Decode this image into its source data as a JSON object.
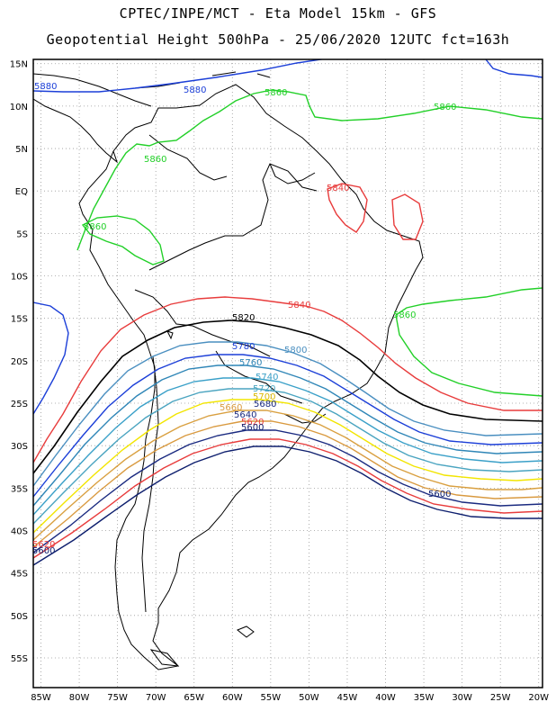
{
  "header": {
    "line1": "CPTEC/INPE/MCT  -  Eta Model 15km  -  GFS",
    "line2": "Geopotential Height 500hPa  -  25/06/2020 12UTC fct=163h"
  },
  "map": {
    "lon_range": [
      -86,
      -19.5
    ],
    "lat_range": [
      -58.5,
      15.5
    ],
    "grid_spacing_deg": 5,
    "grid_style": "dotted",
    "lon_ticks": [
      "85W",
      "80W",
      "75W",
      "70W",
      "65W",
      "60W",
      "55W",
      "50W",
      "45W",
      "40W",
      "35W",
      "30W",
      "25W",
      "20W"
    ],
    "lat_ticks": [
      "15N",
      "10N",
      "5N",
      "EQ",
      "5S",
      "10S",
      "15S",
      "20S",
      "25S",
      "30S",
      "35S",
      "40S",
      "45S",
      "50S",
      "55S"
    ]
  },
  "contour_labels": {
    "c5880": "5880",
    "c5860": "5860",
    "c5840": "5840",
    "c5820": "5820",
    "c5800": "5800",
    "c5780": "5780",
    "c5760": "5760",
    "c5740": "5740",
    "c5720": "5720",
    "c5700": "5700",
    "c5680": "5680",
    "c5660": "5660",
    "c5640": "5640",
    "c5620": "5620",
    "c5600": "5600"
  },
  "colors": {
    "5880": "#1c3fd8",
    "5860": "#22d028",
    "5840": "#e83c3c",
    "5820": "#000000",
    "5800": "#4a8fc0",
    "5780": "#1c3fd8",
    "5760": "#2f86b7",
    "5740": "#3aa0c8",
    "5720": "#4aa4c0",
    "5700": "#f2e500",
    "5680": "#d9a040",
    "5660": "#d99a40",
    "5640": "#1a2a80",
    "5620": "#e83c3c",
    "5600": "#0e1f6e",
    "coast": "#000000",
    "grid": "#9a9a9a"
  }
}
